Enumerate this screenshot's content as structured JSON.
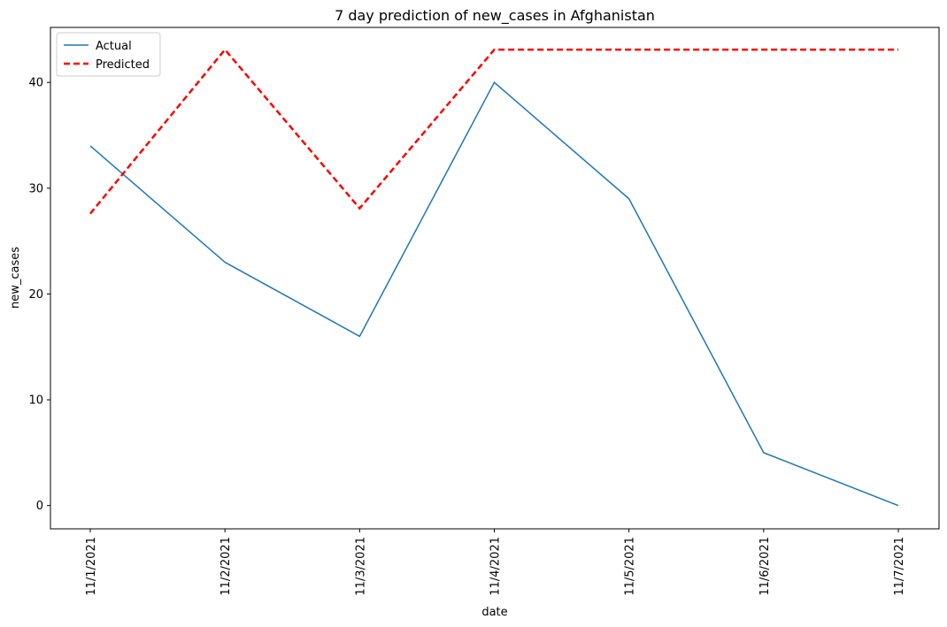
{
  "chart_data": {
    "type": "line",
    "title": "7 day prediction of new_cases in Afghanistan",
    "xlabel": "date",
    "ylabel": "new_cases",
    "categories": [
      "11/1/2021",
      "11/2/2021",
      "11/3/2021",
      "11/4/2021",
      "11/5/2021",
      "11/6/2021",
      "11/7/2021"
    ],
    "ylim": [
      -2.2,
      45.2
    ],
    "yticks": [
      "0",
      "10",
      "20",
      "30",
      "40"
    ],
    "grid": false,
    "legend_position": "upper-left",
    "series": [
      {
        "name": "Actual",
        "values": [
          34,
          23,
          16,
          40,
          29,
          5,
          0
        ],
        "color": "#1f77b4",
        "style": "solid"
      },
      {
        "name": "Predicted",
        "values": [
          27.6,
          43.1,
          28.1,
          43.1,
          43.1,
          43.1,
          43.1
        ],
        "color": "#ff0000",
        "style": "dashed"
      }
    ]
  }
}
